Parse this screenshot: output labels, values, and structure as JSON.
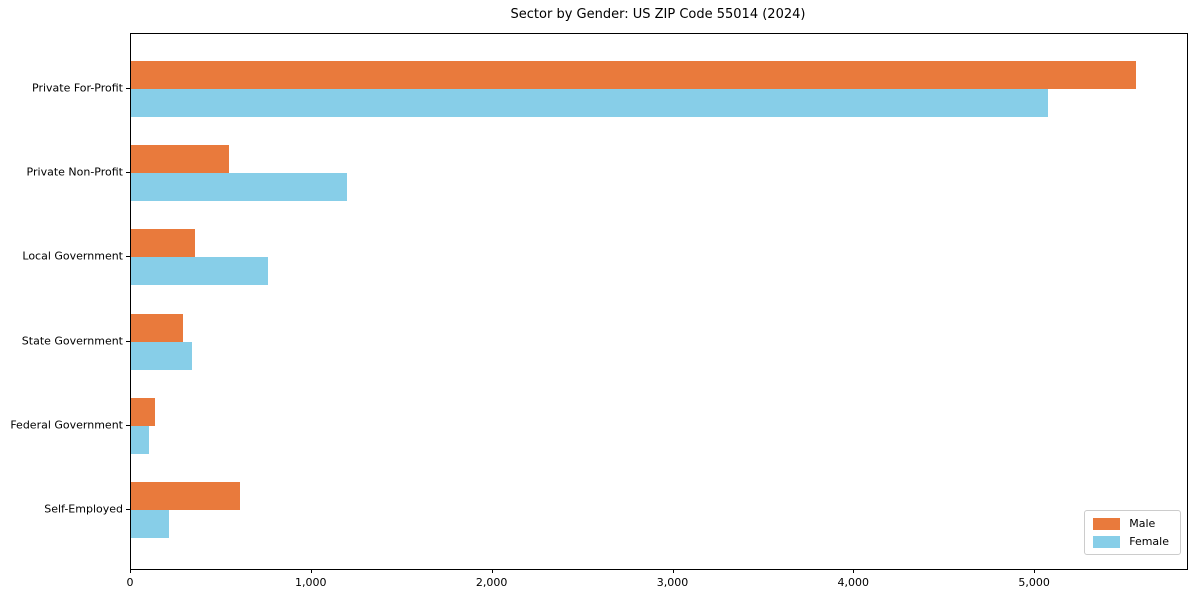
{
  "chart_data": {
    "type": "bar",
    "orientation": "horizontal",
    "title": "Sector by Gender: US ZIP Code 55014 (2024)",
    "xlabel": "",
    "ylabel": "",
    "categories": [
      "Private For-Profit",
      "Private Non-Profit",
      "Local Government",
      "State Government",
      "Federal Government",
      "Self-Employed"
    ],
    "series": [
      {
        "name": "Male",
        "color": "#E97A3C",
        "values": [
          5560,
          540,
          355,
          285,
          135,
          605
        ]
      },
      {
        "name": "Female",
        "color": "#87CEE8",
        "values": [
          5070,
          1195,
          760,
          335,
          100,
          210
        ]
      }
    ],
    "xlim": [
      0,
      5840
    ],
    "xticks": [
      0,
      1000,
      2000,
      3000,
      4000,
      5000
    ],
    "xtick_labels": [
      "0",
      "1,000",
      "2,000",
      "3,000",
      "4,000",
      "5,000"
    ],
    "grid": false,
    "legend_position": "lower right"
  }
}
